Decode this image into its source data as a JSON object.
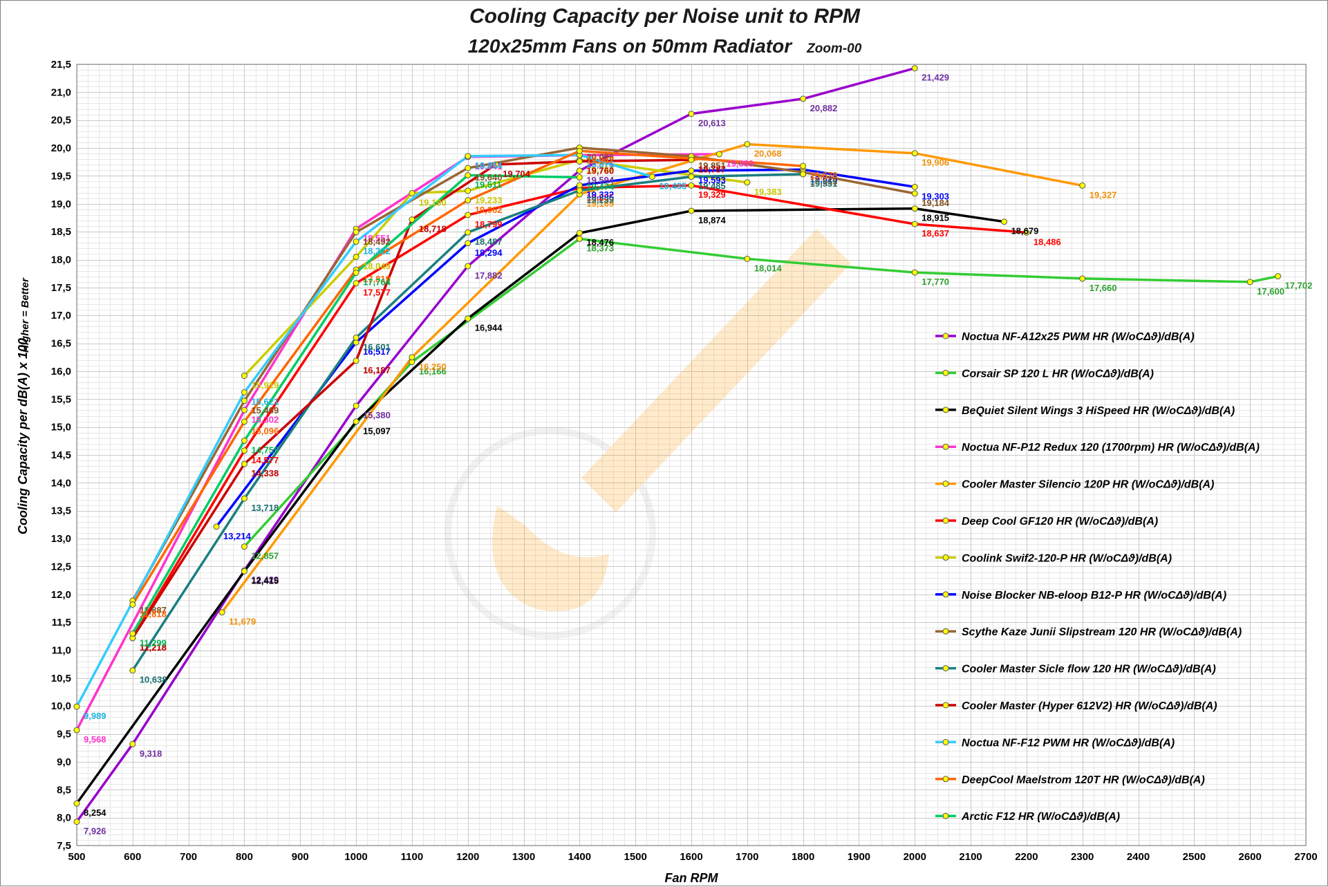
{
  "chart_data": {
    "type": "line",
    "title": "Cooling Capacity per Noise unit  to RPM",
    "subtitle": "120x25mm Fans on 50mm Radiator",
    "zoom_label": "Zoom-00",
    "xlabel": "Fan RPM",
    "ylabel": "Cooling Capacity per dB(A) x 100",
    "ylabel2": "Higher = Better",
    "xlim": [
      500,
      2700
    ],
    "ylim": [
      7.5,
      21.5
    ],
    "x_ticks": [
      500,
      600,
      700,
      800,
      900,
      1000,
      1100,
      1200,
      1300,
      1400,
      1500,
      1600,
      1700,
      1800,
      1900,
      2000,
      2100,
      2200,
      2300,
      2400,
      2500,
      2600,
      2700
    ],
    "y_ticks": [
      "7,5",
      "8,0",
      "8,5",
      "9,0",
      "9,5",
      "10,0",
      "10,5",
      "11,0",
      "11,5",
      "12,0",
      "12,5",
      "13,0",
      "13,5",
      "14,0",
      "14,5",
      "15,0",
      "15,5",
      "16,0",
      "16,5",
      "17,0",
      "17,5",
      "18,0",
      "18,5",
      "19,0",
      "19,5",
      "20,0",
      "20,5",
      "21,0",
      "21,5"
    ],
    "legend_position": "bottom-right",
    "series": [
      {
        "name": "Noctua NF-A12x25 PWM HR (W/oCΔϑ)/dB(A)",
        "color": "#9900cc",
        "marker": "#ffff00",
        "x": [
          500,
          600,
          800,
          1000,
          1200,
          1400,
          1600,
          1800,
          2000
        ],
        "values": [
          7.926,
          9.318,
          12.429,
          15.38,
          17.882,
          19.594,
          20.613,
          20.882,
          21.429
        ],
        "labels": [
          "7,926",
          "9,318",
          "12,429",
          "15,380",
          "17,882",
          "19,594",
          "20,613",
          "20,882",
          "21,429"
        ],
        "label_color": "#7030a0"
      },
      {
        "name": "Corsair SP 120 L HR (W/oCΔϑ)/dB(A)",
        "color": "#33cc33",
        "marker": "#ffff00",
        "x": [
          800,
          1100,
          1400,
          1700,
          2000,
          2300,
          2600,
          2650
        ],
        "values": [
          12.857,
          16.166,
          18.373,
          18.014,
          17.77,
          17.66,
          17.6,
          17.702
        ],
        "labels": [
          "12,857",
          "16,166",
          "18,373",
          "18,014",
          "17,770",
          "17,660",
          "17,600",
          "17,702"
        ],
        "label_color": "#2ea02e"
      },
      {
        "name": "BeQuiet Silent Wings 3 HiSpeed HR (W/oCΔϑ)/dB(A)",
        "color": "#000000",
        "marker": "#ffff00",
        "x": [
          500,
          800,
          1000,
          1200,
          1400,
          1600,
          2000,
          2160
        ],
        "values": [
          8.254,
          12.415,
          15.097,
          16.944,
          18.476,
          18.874,
          18.915,
          18.679
        ],
        "labels": [
          "8,254",
          "12,415",
          "15,097",
          "16,944",
          "18,476",
          "18,874",
          "18,915",
          "18,679"
        ],
        "label_color": "#000000"
      },
      {
        "name": "Noctua NF-P12 Redux 120 (1700rpm) HR (W/oCΔϑ)/dB(A)",
        "color": "#ff33cc",
        "marker": "#ffff00",
        "x": [
          500,
          800,
          1000,
          1200,
          1400,
          1650
        ],
        "values": [
          9.568,
          15.302,
          18.551,
          19.841,
          19.871,
          19.889
        ],
        "labels": [
          "9,568",
          "15,302",
          "18,551",
          "19,841",
          "19,871",
          "19,889"
        ],
        "label_color": "#ff33cc"
      },
      {
        "name": "Cooler Master Silencio 120P HR (W/oCΔϑ)/dB(A)",
        "color": "#ff9900",
        "marker": "#ffff00",
        "x": [
          760,
          1100,
          1400,
          1700,
          2000,
          2300
        ],
        "values": [
          11.679,
          16.25,
          19.169,
          20.068,
          19.906,
          19.327
        ],
        "labels": [
          "11,679",
          "16,250",
          "19,169",
          "20,068",
          "19,906",
          "19,327"
        ],
        "label_color": "#f0900a"
      },
      {
        "name": "Deep Cool GF120 HR (W/oCΔϑ)/dB(A)",
        "color": "#ff0000",
        "marker": "#ffff00",
        "x": [
          600,
          800,
          1000,
          1200,
          1400,
          1600,
          2000,
          2200
        ],
        "values": [
          11.218,
          14.577,
          17.577,
          18.799,
          19.285,
          19.329,
          18.637,
          18.486
        ],
        "labels": [
          "11,218",
          "14,577",
          "17,577",
          "18,799",
          "19,285",
          "19,329",
          "18,637",
          "18,486"
        ],
        "label_color": "#ff0000"
      },
      {
        "name": "Coolink Swif2-120-P HR (W/oCΔϑ)/dB(A)",
        "color": "#cccc00",
        "marker": "#ffff00",
        "x": [
          800,
          1000,
          1100,
          1200,
          1400,
          1700
        ],
        "values": [
          15.919,
          18.049,
          19.19,
          19.233,
          19.787,
          19.383
        ],
        "labels": [
          "15,919",
          "18,049",
          "19,190",
          "19,233",
          "19,787",
          "19,383"
        ],
        "label_color": "#c8c800"
      },
      {
        "name": "Noise Blocker NB-eloop B12-P HR (W/oCΔϑ)/dB(A)",
        "color": "#0000ff",
        "marker": "#ffff00",
        "x": [
          750,
          1000,
          1200,
          1400,
          1600,
          1800,
          2000
        ],
        "values": [
          13.214,
          16.517,
          18.294,
          19.332,
          19.593,
          19.613,
          19.303
        ],
        "labels": [
          "13,214",
          "16,517",
          "18,294",
          "19,332",
          "19,593",
          "19,613",
          "19,303"
        ],
        "label_color": "#0000ff"
      },
      {
        "name": "Scythe Kaze Junii Slipstream  120 HR (W/oCΔϑ)/dB(A)",
        "color": "#996633",
        "marker": "#ffff00",
        "x": [
          600,
          800,
          1000,
          1200,
          1400,
          1600,
          1800,
          2000
        ],
        "values": [
          11.887,
          15.469,
          18.492,
          19.64,
          20.006,
          19.851,
          19.565,
          19.184
        ],
        "labels": [
          "11,887",
          "15,469",
          "18,492",
          "19,640",
          "20,006",
          "19,851",
          "19,565",
          "19,184"
        ],
        "label_color": "#7f4f1f"
      },
      {
        "name": "Cooler Master Sicle flow 120 HR (W/oCΔϑ)/dB(A)",
        "color": "#1a7f7f",
        "marker": "#ffff00",
        "x": [
          600,
          800,
          1000,
          1200,
          1400,
          1600,
          1800
        ],
        "values": [
          10.638,
          13.718,
          16.601,
          18.487,
          19.239,
          19.485,
          19.531
        ],
        "labels": [
          "10,638",
          "13,718",
          "16,601",
          "18,487",
          "19,239",
          "19,485",
          "19,531"
        ],
        "label_color": "#1a6f6f"
      },
      {
        "name": "Cooler Master (Hyper 612V2) HR (W/oCΔϑ)/dB(A)",
        "color": "#cc0000",
        "marker": "#ffff00",
        "x": [
          600,
          800,
          1000,
          1100,
          1250,
          1400,
          1600
        ],
        "values": [
          11.218,
          14.338,
          16.187,
          18.718,
          19.704,
          19.76,
          19.787
        ],
        "labels": [
          "11,218",
          "14,338",
          "16,187",
          "18,718",
          "19,704",
          "19,760",
          "19,787"
        ],
        "label_color": "#c00000"
      },
      {
        "name": "Noctua NF-F12 PWM HR (W/oCΔϑ)/dB(A)",
        "color": "#33ccff",
        "marker": "#ffff00",
        "x": [
          500,
          800,
          1000,
          1200,
          1400,
          1530
        ],
        "values": [
          9.989,
          15.621,
          18.322,
          19.854,
          19.875,
          19.485
        ],
        "labels": [
          "9,989",
          "15,621",
          "18,322",
          "19,854",
          "19,875",
          "19,485"
        ],
        "label_color": "#1fb0e0"
      },
      {
        "name": "DeepCool Maelstrom 120T HR (W/oCΔϑ)/dB(A)",
        "color": "#ff6600",
        "marker": "#ffff00",
        "x": [
          600,
          800,
          1000,
          1200,
          1400,
          1800
        ],
        "values": [
          11.818,
          15.096,
          17.819,
          19.062,
          19.947,
          19.678
        ],
        "labels": [
          "11,818",
          "15,096",
          "17,819",
          "19,062",
          "19,947",
          "19,678"
        ],
        "label_color": "#ff6600"
      },
      {
        "name": "Arctic F12 HR (W/oCΔϑ)/dB(A)",
        "color": "#00cc66",
        "marker": "#ffff00",
        "x": [
          600,
          800,
          1000,
          1200,
          1400
        ],
        "values": [
          11.299,
          14.755,
          17.764,
          19.511,
          19.474
        ],
        "labels": [
          "11,299",
          "14,755",
          "17,764",
          "19,511",
          "19,474"
        ],
        "label_color": "#00b050"
      }
    ]
  }
}
